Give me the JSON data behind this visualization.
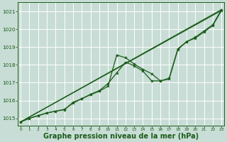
{
  "background_color": "#c8ddd5",
  "plot_bg_color": "#c8ddd5",
  "grid_color": "#ffffff",
  "line_color": "#1a5c1a",
  "xlabel": "Graphe pression niveau de la mer (hPa)",
  "xlabel_fontsize": 7.0,
  "ylim": [
    1014.6,
    1021.5
  ],
  "xlim": [
    -0.3,
    23.3
  ],
  "yticks": [
    1015,
    1016,
    1017,
    1018,
    1019,
    1020,
    1021
  ],
  "xticks": [
    0,
    1,
    2,
    3,
    4,
    5,
    6,
    7,
    8,
    9,
    10,
    11,
    12,
    13,
    14,
    15,
    16,
    17,
    18,
    19,
    20,
    21,
    22,
    23
  ],
  "series1_x": [
    0,
    1,
    2,
    3,
    4,
    5,
    6,
    7,
    8,
    9,
    10,
    11,
    12,
    13,
    14,
    15,
    16,
    17,
    18,
    19,
    20,
    21,
    22,
    23
  ],
  "series1_y": [
    1014.8,
    1015.0,
    1015.15,
    1015.3,
    1015.4,
    1015.5,
    1015.85,
    1016.1,
    1016.35,
    1016.55,
    1016.95,
    1017.55,
    1018.15,
    1017.95,
    1017.65,
    1017.1,
    1017.1,
    1017.25,
    1018.9,
    1019.3,
    1019.5,
    1019.85,
    1020.2,
    1021.05
  ],
  "series2_x": [
    0,
    1,
    2,
    3,
    4,
    5,
    6,
    7,
    8,
    9,
    10,
    11,
    12,
    13,
    14,
    15,
    16,
    17,
    18,
    19,
    20,
    21,
    22,
    23
  ],
  "series2_y": [
    1014.8,
    1015.0,
    1015.15,
    1015.3,
    1015.4,
    1015.48,
    1015.9,
    1016.1,
    1016.32,
    1016.52,
    1016.8,
    1018.55,
    1018.4,
    1018.05,
    1017.75,
    1017.5,
    1017.1,
    1017.2,
    1018.85,
    1019.3,
    1019.55,
    1019.9,
    1020.25,
    1021.1
  ],
  "line1_x": [
    0,
    23
  ],
  "line1_y": [
    1014.8,
    1021.05
  ],
  "line2_x": [
    0,
    23
  ],
  "line2_y": [
    1014.8,
    1021.1
  ]
}
